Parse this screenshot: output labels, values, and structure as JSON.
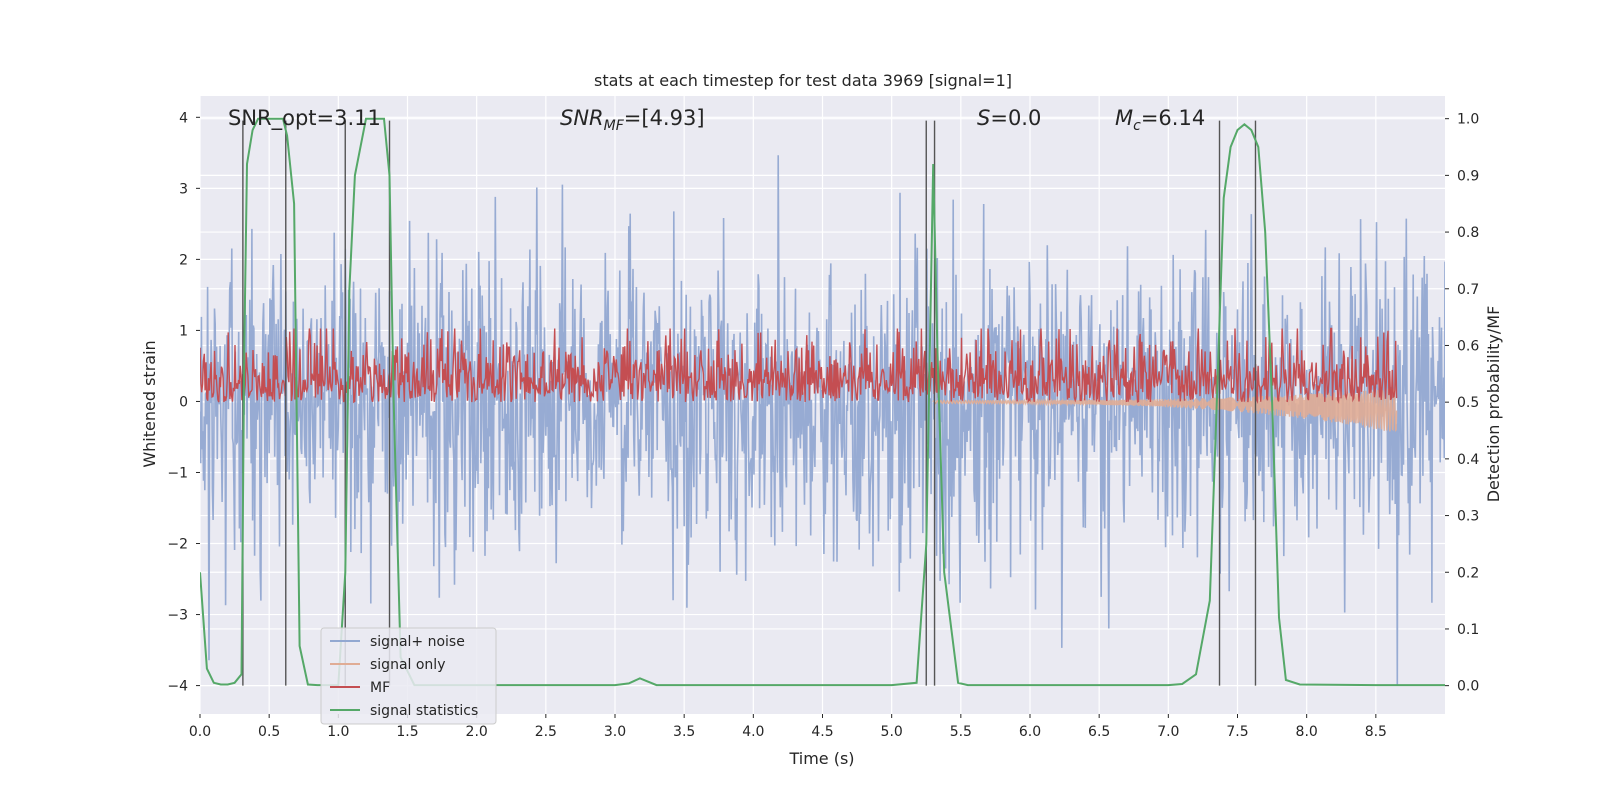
{
  "chart_data": {
    "type": "line",
    "title": "stats at each timestep for test data 3969 [signal=1]",
    "xlabel": "Time (s)",
    "ylabel_left": "Whitened strain",
    "ylabel_right": "Detection probability/MF",
    "xlim": [
      0.0,
      9.0
    ],
    "ylim_left": [
      -4.4,
      4.3
    ],
    "ylim_right": [
      -0.05,
      1.04
    ],
    "x_ticks": [
      0.0,
      0.5,
      1.0,
      1.5,
      2.0,
      2.5,
      3.0,
      3.5,
      4.0,
      4.5,
      5.0,
      5.5,
      6.0,
      6.5,
      7.0,
      7.5,
      8.0,
      8.5
    ],
    "x_tick_labels": [
      "0.0",
      "0.5",
      "1.0",
      "1.5",
      "2.0",
      "2.5",
      "3.0",
      "3.5",
      "4.0",
      "4.5",
      "5.0",
      "5.5",
      "6.0",
      "6.5",
      "7.0",
      "7.5",
      "8.0",
      "8.5"
    ],
    "y_left_ticks": [
      4,
      3,
      2,
      1,
      0,
      -1,
      -2,
      -3,
      -4
    ],
    "y_left_tick_labels": [
      "4",
      "3",
      "2",
      "1",
      "0",
      "−1",
      "−2",
      "−3",
      "−4"
    ],
    "y_right_ticks": [
      1.0,
      0.9,
      0.8,
      0.7,
      0.6,
      0.5,
      0.4,
      0.3,
      0.2,
      0.1,
      0.0
    ],
    "y_right_tick_labels": [
      "1.0",
      "0.9",
      "0.8",
      "0.7",
      "0.6",
      "0.5",
      "0.4",
      "0.3",
      "0.2",
      "0.1",
      "0.0"
    ],
    "grid": true,
    "legend_position": "lower-left",
    "annotations": {
      "snr_opt": "SNR_opt=3.11",
      "snr_mf_main": "SNR",
      "snr_mf_sub": "MF",
      "snr_mf_rest": "=[4.93]",
      "s_main": "S",
      "s_rest": "=0.0",
      "mc_main": "M",
      "mc_sub": "c",
      "mc_rest": "=6.14"
    },
    "series": [
      {
        "name": "signal+ noise",
        "color": "#92a8d1",
        "kind": "noise",
        "typical_amplitude": 1.6,
        "peak_amplitude": 3.3,
        "x_range": [
          0.0,
          9.0
        ]
      },
      {
        "name": "signal only",
        "color": "#e0ac95",
        "kind": "chirp",
        "x_range": [
          5.3,
          8.65
        ],
        "end_amplitude": 0.3
      },
      {
        "name": "MF",
        "color": "#c44e52",
        "kind": "mf",
        "axis": "right",
        "baseline": 0.5,
        "typical_max": 0.6,
        "peak": 0.63,
        "x_range": [
          0.0,
          8.65
        ]
      },
      {
        "name": "signal statistics",
        "color": "#55a868",
        "axis": "right",
        "x": [
          0.0,
          0.05,
          0.1,
          0.15,
          0.2,
          0.25,
          0.3,
          0.32,
          0.34,
          0.38,
          0.42,
          0.45,
          0.6,
          0.63,
          0.68,
          0.72,
          0.78,
          0.85,
          1.0,
          1.05,
          1.08,
          1.12,
          1.2,
          1.33,
          1.37,
          1.4,
          1.45,
          1.55,
          2.0,
          3.0,
          3.1,
          3.18,
          3.3,
          4.0,
          5.0,
          5.18,
          5.25,
          5.3,
          5.33,
          5.38,
          5.48,
          5.55,
          6.0,
          7.0,
          7.1,
          7.2,
          7.3,
          7.35,
          7.4,
          7.45,
          7.5,
          7.55,
          7.6,
          7.65,
          7.7,
          7.75,
          7.8,
          7.85,
          7.95,
          8.5,
          9.0
        ],
        "y": [
          0.2,
          0.03,
          0.005,
          0.002,
          0.002,
          0.005,
          0.02,
          0.6,
          0.92,
          0.98,
          1.0,
          1.0,
          1.0,
          0.97,
          0.85,
          0.07,
          0.002,
          0.001,
          0.001,
          0.2,
          0.7,
          0.9,
          1.0,
          1.0,
          0.9,
          0.5,
          0.05,
          0.001,
          0.001,
          0.001,
          0.004,
          0.013,
          0.001,
          0.001,
          0.001,
          0.005,
          0.25,
          0.92,
          0.6,
          0.2,
          0.005,
          0.001,
          0.001,
          0.001,
          0.003,
          0.02,
          0.15,
          0.5,
          0.86,
          0.95,
          0.98,
          0.99,
          0.98,
          0.95,
          0.8,
          0.5,
          0.12,
          0.01,
          0.002,
          0.001,
          0.001
        ]
      }
    ],
    "vertical_lines_x": [
      0.31,
      0.62,
      1.05,
      1.37,
      5.25,
      5.31,
      7.37,
      7.63
    ]
  }
}
